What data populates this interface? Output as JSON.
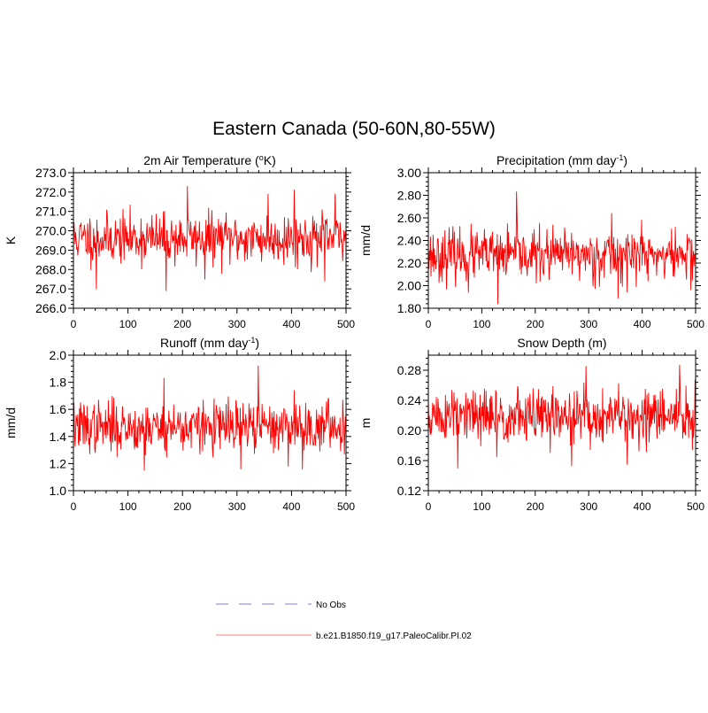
{
  "title": "Eastern Canada (50-60N,80-55W)",
  "colors": {
    "model": "#ff0000",
    "model_legend": "#ffaaaa",
    "obs_legend": "#aaaaee"
  },
  "legend": [
    {
      "name": "No Obs",
      "style": "dashed"
    },
    {
      "name": "b.e21.B1850.f19_g17.PaleoCalibr.PI.02",
      "style": "solid"
    }
  ],
  "chart_data": [
    {
      "type": "line",
      "title": "2m Air Temperature (",
      "title_sup": "o",
      "title_tail": "K)",
      "ylabel": "K",
      "xlabel": "",
      "xlim": [
        0,
        500
      ],
      "ylim": [
        266.0,
        273.0
      ],
      "yticks": [
        "266.0",
        "267.0",
        "268.0",
        "269.0",
        "270.0",
        "271.0",
        "272.0",
        "273.0"
      ],
      "xticks": [
        "0",
        "100",
        "200",
        "300",
        "400",
        "500"
      ],
      "ytick_values": [
        266.0,
        267.0,
        268.0,
        269.0,
        270.0,
        271.0,
        272.0,
        273.0
      ],
      "xtick_values": [
        0,
        100,
        200,
        300,
        400,
        500
      ],
      "mean": 269.6,
      "amp": 0.75,
      "seed": 11,
      "spikes": [
        [
          42,
          267.0
        ],
        [
          170,
          266.9
        ],
        [
          209,
          272.3
        ],
        [
          241,
          267.5
        ],
        [
          357,
          271.9
        ],
        [
          405,
          272.1
        ],
        [
          461,
          267.4
        ],
        [
          480,
          271.9
        ]
      ]
    },
    {
      "type": "line",
      "title": "Precipitation (mm day",
      "title_sup": "-1",
      "title_tail": ")",
      "ylabel": "mm/d",
      "xlabel": "",
      "xlim": [
        0,
        500
      ],
      "ylim": [
        1.8,
        3.0
      ],
      "yticks": [
        "1.80",
        "2.00",
        "2.20",
        "2.40",
        "2.60",
        "2.80",
        "3.00"
      ],
      "xticks": [
        "0",
        "100",
        "200",
        "300",
        "400",
        "500"
      ],
      "ytick_values": [
        1.8,
        2.0,
        2.2,
        2.4,
        2.6,
        2.8,
        3.0
      ],
      "xtick_values": [
        0,
        100,
        200,
        300,
        400,
        500
      ],
      "mean": 2.27,
      "amp": 0.13,
      "seed": 23,
      "spikes": [
        [
          165,
          2.83
        ],
        [
          130,
          1.84
        ],
        [
          75,
          1.94
        ],
        [
          343,
          2.64
        ],
        [
          355,
          1.89
        ],
        [
          399,
          2.58
        ]
      ]
    },
    {
      "type": "line",
      "title": "Runoff (mm day",
      "title_sup": "-1",
      "title_tail": ")",
      "ylabel": "mm/d",
      "xlabel": "",
      "xlim": [
        0,
        500
      ],
      "ylim": [
        1.0,
        2.0
      ],
      "yticks": [
        "1.0",
        "1.2",
        "1.4",
        "1.6",
        "1.8",
        "2.0"
      ],
      "xticks": [
        "0",
        "100",
        "200",
        "300",
        "400",
        "500"
      ],
      "ytick_values": [
        1.0,
        1.2,
        1.4,
        1.6,
        1.8,
        2.0
      ],
      "xtick_values": [
        0,
        100,
        200,
        300,
        400,
        500
      ],
      "mean": 1.47,
      "amp": 0.11,
      "seed": 37,
      "spikes": [
        [
          339,
          1.92
        ],
        [
          166,
          1.83
        ],
        [
          130,
          1.15
        ],
        [
          307,
          1.16
        ],
        [
          405,
          1.74
        ],
        [
          420,
          1.16
        ]
      ]
    },
    {
      "type": "line",
      "title": "Snow Depth (m)",
      "title_sup": "",
      "title_tail": "",
      "ylabel": "m",
      "xlabel": "",
      "xlim": [
        0,
        500
      ],
      "ylim": [
        0.12,
        0.3
      ],
      "yticks": [
        "0.12",
        "0.16",
        "0.20",
        "0.24",
        "0.28"
      ],
      "xticks": [
        "0",
        "100",
        "200",
        "300",
        "400",
        "500"
      ],
      "ytick_values": [
        0.12,
        0.16,
        0.2,
        0.24,
        0.28
      ],
      "xtick_values": [
        0,
        100,
        200,
        300,
        400,
        500
      ],
      "mean": 0.218,
      "amp": 0.022,
      "seed": 51,
      "spikes": [
        [
          470,
          0.287
        ],
        [
          295,
          0.285
        ],
        [
          55,
          0.15
        ],
        [
          268,
          0.153
        ],
        [
          372,
          0.155
        ],
        [
          128,
          0.165
        ]
      ]
    }
  ]
}
